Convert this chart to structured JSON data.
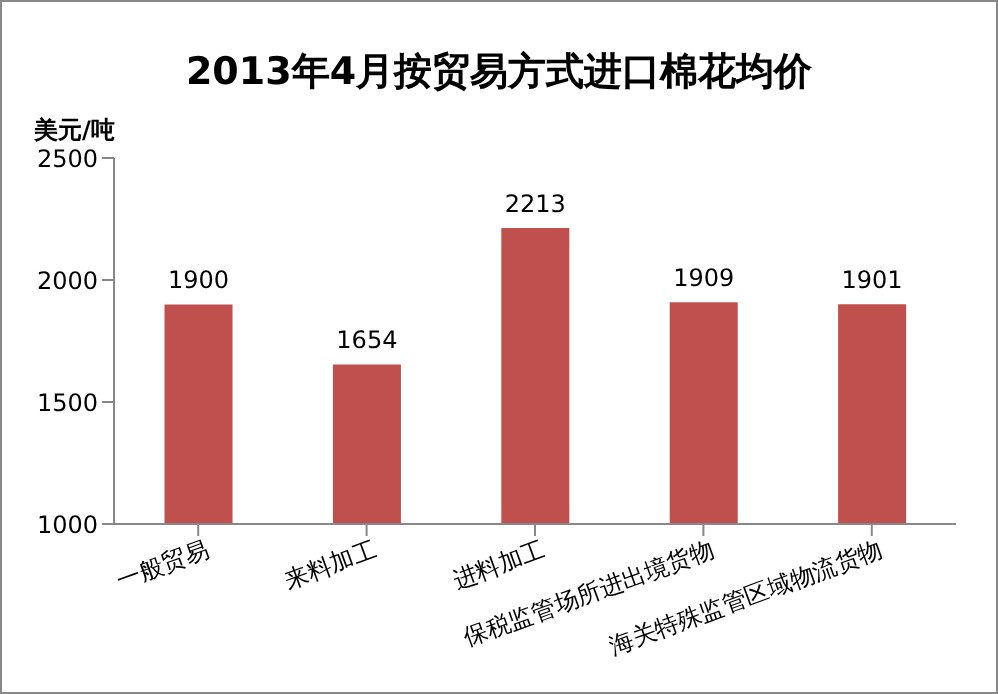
{
  "chart_data": {
    "type": "bar",
    "title": "2013年4月按贸易方式进口棉花均价",
    "ylabel": "美元/吨",
    "categories": [
      "一般贸易",
      "来料加工",
      "进料加工",
      "保税监管场所进出境货物",
      "海关特殊监管区域物流货物"
    ],
    "values": [
      1900,
      1654,
      2213,
      1909,
      1901
    ],
    "color": "#c0504d",
    "ylim": [
      1000,
      2500
    ],
    "yticks": [
      1000,
      1500,
      2000,
      2500
    ],
    "grid": false,
    "data_labels": true
  }
}
